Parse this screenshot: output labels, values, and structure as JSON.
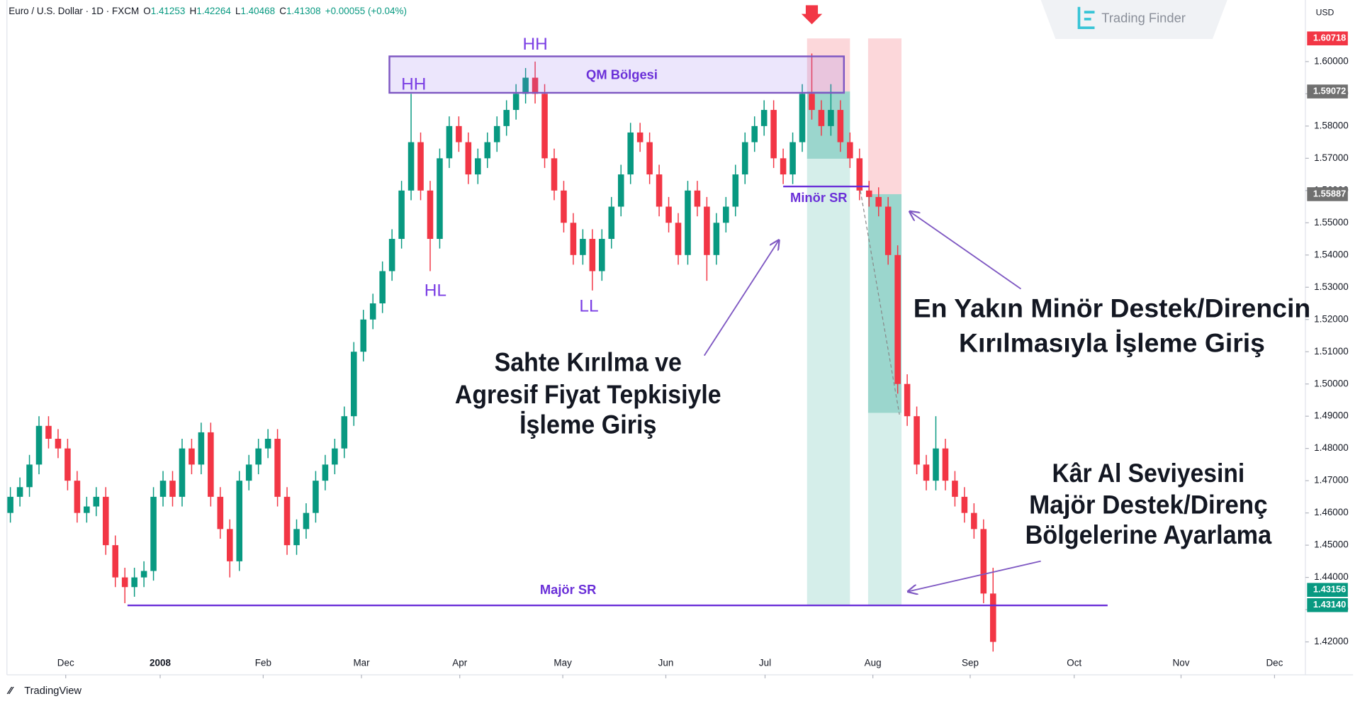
{
  "header": {
    "symbol": "Euro / U.S. Dollar · 1D · FXCM",
    "ohlc": [
      {
        "key": "O",
        "value": "1.41253"
      },
      {
        "key": "H",
        "value": "1.42264"
      },
      {
        "key": "L",
        "value": "1.40468"
      },
      {
        "key": "C",
        "value": "1.41308"
      }
    ],
    "change": "+0.00055 (+0.04%)"
  },
  "brand": "Trading Finder",
  "footer": "TradingView",
  "currency": "USD",
  "chart_data": {
    "type": "candlestick",
    "up_color": "#089981",
    "down_color": "#f23645",
    "grid": false,
    "ohlc": [
      [
        1.46,
        1.468,
        1.457,
        1.465
      ],
      [
        1.465,
        1.471,
        1.462,
        1.468
      ],
      [
        1.468,
        1.478,
        1.465,
        1.475
      ],
      [
        1.475,
        1.49,
        1.472,
        1.487
      ],
      [
        1.487,
        1.49,
        1.48,
        1.483
      ],
      [
        1.483,
        1.486,
        1.477,
        1.48
      ],
      [
        1.48,
        1.483,
        1.467,
        1.47
      ],
      [
        1.47,
        1.473,
        1.457,
        1.46
      ],
      [
        1.46,
        1.465,
        1.457,
        1.462
      ],
      [
        1.462,
        1.468,
        1.459,
        1.465
      ],
      [
        1.465,
        1.468,
        1.447,
        1.45
      ],
      [
        1.45,
        1.453,
        1.437,
        1.44
      ],
      [
        1.44,
        1.443,
        1.432,
        1.437
      ],
      [
        1.437,
        1.443,
        1.434,
        1.44
      ],
      [
        1.44,
        1.445,
        1.437,
        1.442
      ],
      [
        1.442,
        1.468,
        1.439,
        1.465
      ],
      [
        1.465,
        1.473,
        1.462,
        1.47
      ],
      [
        1.47,
        1.473,
        1.462,
        1.465
      ],
      [
        1.465,
        1.483,
        1.462,
        1.48
      ],
      [
        1.48,
        1.483,
        1.472,
        1.475
      ],
      [
        1.475,
        1.488,
        1.472,
        1.485
      ],
      [
        1.485,
        1.488,
        1.462,
        1.465
      ],
      [
        1.465,
        1.468,
        1.452,
        1.455
      ],
      [
        1.455,
        1.458,
        1.44,
        1.445
      ],
      [
        1.445,
        1.473,
        1.442,
        1.47
      ],
      [
        1.47,
        1.478,
        1.467,
        1.475
      ],
      [
        1.475,
        1.483,
        1.472,
        1.48
      ],
      [
        1.48,
        1.486,
        1.477,
        1.483
      ],
      [
        1.483,
        1.486,
        1.462,
        1.465
      ],
      [
        1.465,
        1.468,
        1.447,
        1.45
      ],
      [
        1.45,
        1.458,
        1.447,
        1.455
      ],
      [
        1.455,
        1.463,
        1.452,
        1.46
      ],
      [
        1.46,
        1.473,
        1.457,
        1.47
      ],
      [
        1.47,
        1.478,
        1.467,
        1.475
      ],
      [
        1.475,
        1.483,
        1.472,
        1.48
      ],
      [
        1.48,
        1.493,
        1.477,
        1.49
      ],
      [
        1.49,
        1.513,
        1.487,
        1.51
      ],
      [
        1.51,
        1.523,
        1.507,
        1.52
      ],
      [
        1.52,
        1.528,
        1.517,
        1.525
      ],
      [
        1.525,
        1.538,
        1.522,
        1.535
      ],
      [
        1.535,
        1.548,
        1.532,
        1.545
      ],
      [
        1.545,
        1.563,
        1.542,
        1.56
      ],
      [
        1.56,
        1.59,
        1.557,
        1.575
      ],
      [
        1.575,
        1.578,
        1.557,
        1.56
      ],
      [
        1.56,
        1.563,
        1.535,
        1.545
      ],
      [
        1.545,
        1.573,
        1.542,
        1.57
      ],
      [
        1.57,
        1.583,
        1.567,
        1.58
      ],
      [
        1.58,
        1.583,
        1.572,
        1.575
      ],
      [
        1.575,
        1.578,
        1.562,
        1.565
      ],
      [
        1.565,
        1.573,
        1.562,
        1.57
      ],
      [
        1.57,
        1.578,
        1.567,
        1.575
      ],
      [
        1.575,
        1.583,
        1.572,
        1.58
      ],
      [
        1.58,
        1.588,
        1.577,
        1.585
      ],
      [
        1.585,
        1.593,
        1.582,
        1.59
      ],
      [
        1.59,
        1.598,
        1.587,
        1.595
      ],
      [
        1.595,
        1.6,
        1.587,
        1.59
      ],
      [
        1.59,
        1.593,
        1.567,
        1.57
      ],
      [
        1.57,
        1.573,
        1.557,
        1.56
      ],
      [
        1.56,
        1.563,
        1.547,
        1.55
      ],
      [
        1.55,
        1.553,
        1.537,
        1.54
      ],
      [
        1.54,
        1.548,
        1.537,
        1.545
      ],
      [
        1.545,
        1.548,
        1.529,
        1.535
      ],
      [
        1.535,
        1.548,
        1.532,
        1.545
      ],
      [
        1.545,
        1.558,
        1.542,
        1.555
      ],
      [
        1.555,
        1.568,
        1.552,
        1.565
      ],
      [
        1.565,
        1.581,
        1.562,
        1.578
      ],
      [
        1.578,
        1.581,
        1.572,
        1.575
      ],
      [
        1.575,
        1.578,
        1.562,
        1.565
      ],
      [
        1.565,
        1.568,
        1.552,
        1.555
      ],
      [
        1.555,
        1.558,
        1.547,
        1.55
      ],
      [
        1.55,
        1.553,
        1.537,
        1.54
      ],
      [
        1.54,
        1.563,
        1.537,
        1.56
      ],
      [
        1.56,
        1.563,
        1.552,
        1.555
      ],
      [
        1.555,
        1.558,
        1.532,
        1.54
      ],
      [
        1.54,
        1.553,
        1.537,
        1.55
      ],
      [
        1.55,
        1.558,
        1.547,
        1.555
      ],
      [
        1.555,
        1.568,
        1.552,
        1.565
      ],
      [
        1.565,
        1.578,
        1.562,
        1.575
      ],
      [
        1.575,
        1.583,
        1.572,
        1.58
      ],
      [
        1.58,
        1.588,
        1.577,
        1.585
      ],
      [
        1.585,
        1.588,
        1.567,
        1.57
      ],
      [
        1.57,
        1.573,
        1.562,
        1.565
      ],
      [
        1.565,
        1.578,
        1.562,
        1.575
      ],
      [
        1.575,
        1.593,
        1.572,
        1.59
      ],
      [
        1.59,
        1.6025,
        1.582,
        1.585
      ],
      [
        1.585,
        1.588,
        1.577,
        1.58
      ],
      [
        1.58,
        1.593,
        1.577,
        1.585
      ],
      [
        1.585,
        1.588,
        1.572,
        1.575
      ],
      [
        1.575,
        1.578,
        1.567,
        1.57
      ],
      [
        1.57,
        1.573,
        1.557,
        1.56
      ],
      [
        1.56,
        1.563,
        1.555,
        1.558
      ],
      [
        1.558,
        1.561,
        1.552,
        1.555
      ],
      [
        1.555,
        1.558,
        1.537,
        1.54
      ],
      [
        1.54,
        1.543,
        1.497,
        1.5
      ],
      [
        1.5,
        1.503,
        1.487,
        1.49
      ],
      [
        1.49,
        1.493,
        1.472,
        1.475
      ],
      [
        1.475,
        1.478,
        1.467,
        1.47
      ],
      [
        1.47,
        1.49,
        1.467,
        1.48
      ],
      [
        1.48,
        1.483,
        1.467,
        1.47
      ],
      [
        1.47,
        1.473,
        1.462,
        1.465
      ],
      [
        1.465,
        1.468,
        1.457,
        1.46
      ],
      [
        1.46,
        1.463,
        1.452,
        1.455
      ],
      [
        1.455,
        1.458,
        1.432,
        1.435
      ],
      [
        1.435,
        1.443,
        1.417,
        1.42
      ]
    ],
    "xlim": [
      -0.36,
      135.73
    ],
    "xticks": [
      {
        "value": 5.8,
        "label": "Dec"
      },
      {
        "value": 15.7,
        "label": "2008",
        "bold": true
      },
      {
        "value": 26.5,
        "label": "Feb"
      },
      {
        "value": 36.8,
        "label": "Mar"
      },
      {
        "value": 47.1,
        "label": "Apr"
      },
      {
        "value": 57.9,
        "label": "May"
      },
      {
        "value": 68.7,
        "label": "Jun"
      },
      {
        "value": 79.1,
        "label": "Jul"
      },
      {
        "value": 90.4,
        "label": "Aug"
      },
      {
        "value": 100.6,
        "label": "Sep"
      },
      {
        "value": 111.5,
        "label": "Oct"
      },
      {
        "value": 122.7,
        "label": "Nov"
      },
      {
        "value": 132.5,
        "label": "Dec"
      }
    ],
    "ylim": [
      1.4098,
      1.6191
    ],
    "yticks": [
      {
        "value": 1.42,
        "label": "1.42000"
      },
      {
        "value": 1.43,
        "label": "1.43000"
      },
      {
        "value": 1.44,
        "label": "1.44000"
      },
      {
        "value": 1.45,
        "label": "1.45000"
      },
      {
        "value": 1.46,
        "label": "1.46000"
      },
      {
        "value": 1.47,
        "label": "1.47000"
      },
      {
        "value": 1.48,
        "label": "1.48000"
      },
      {
        "value": 1.49,
        "label": "1.49000"
      },
      {
        "value": 1.5,
        "label": "1.50000"
      },
      {
        "value": 1.51,
        "label": "1.51000"
      },
      {
        "value": 1.52,
        "label": "1.52000"
      },
      {
        "value": 1.53,
        "label": "1.53000"
      },
      {
        "value": 1.54,
        "label": "1.54000"
      },
      {
        "value": 1.55,
        "label": "1.55000"
      },
      {
        "value": 1.56,
        "label": "1.56000"
      },
      {
        "value": 1.57,
        "label": "1.57000"
      },
      {
        "value": 1.58,
        "label": "1.58000"
      },
      {
        "value": 1.59,
        "label": "1.59000"
      },
      {
        "value": 1.6,
        "label": "1.60000"
      }
    ],
    "positions": [
      {
        "stop": 1.60718,
        "entry": 1.59072,
        "target": 1.43156
      },
      {
        "stop": 1.60718,
        "entry": 1.55887,
        "target": {
          "value": 1.4314,
          "label": "1.43140"
        }
      }
    ],
    "zone_label": "QM Bölgesi",
    "levels": [
      "Minör SR",
      "Majör SR"
    ],
    "swing_labels": [
      "HH",
      "HH",
      "HL",
      "LL"
    ],
    "annotations": [
      {
        "lines": [
          "Sahte Kırılma ve",
          "Agresif Fiyat Tepkisiyle",
          "İşleme Giriş"
        ]
      },
      {
        "lines": [
          "En Yakın Minör Destek/Direncin",
          "Kırılmasıyla İşleme Giriş"
        ]
      },
      {
        "lines": [
          "Kâr Al Seviyesini",
          "Majör Destek/Direnç",
          "Bölgelerine Ayarlama"
        ]
      }
    ]
  }
}
